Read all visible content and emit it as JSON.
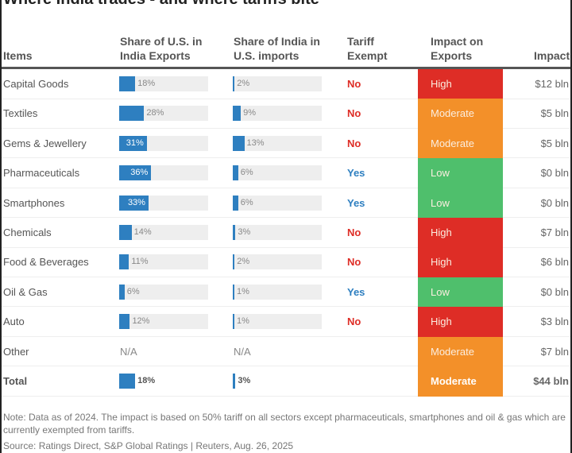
{
  "title": "Where India trades - and where tariffs bite",
  "headers": {
    "items": "Items",
    "share_us_1": "Share of U.S. in",
    "share_us_2": "India Exports",
    "share_india_1": "Share of India in",
    "share_india_2": "U.S. imports",
    "exempt_1": "Tariff",
    "exempt_2": "Exempt",
    "impact_1": "Impact on",
    "impact_2": "Exports",
    "impact_usd": "Impact"
  },
  "colors": {
    "bar": "#2e7fc0",
    "track": "#eeeeee",
    "High": "#de2d26",
    "Moderate": "#f39029",
    "Low": "#4fbf6c",
    "No": "#de2d26",
    "Yes": "#2e7fc0"
  },
  "chart_data": {
    "type": "table",
    "rows": [
      {
        "item": "Capital Goods",
        "us_share": 18,
        "us_share_label": "18%",
        "india_share": 2,
        "india_share_label": "2%",
        "exempt": "No",
        "impact": "High",
        "impact_usd": "$12 bln"
      },
      {
        "item": "Textiles",
        "us_share": 28,
        "us_share_label": "28%",
        "india_share": 9,
        "india_share_label": "9%",
        "exempt": "No",
        "impact": "Moderate",
        "impact_usd": "$5 bln"
      },
      {
        "item": "Gems & Jewellery",
        "us_share": 31,
        "us_share_label": "31%",
        "india_share": 13,
        "india_share_label": "13%",
        "exempt": "No",
        "impact": "Moderate",
        "impact_usd": "$5 bln"
      },
      {
        "item": "Pharmaceuticals",
        "us_share": 36,
        "us_share_label": "36%",
        "india_share": 6,
        "india_share_label": "6%",
        "exempt": "Yes",
        "impact": "Low",
        "impact_usd": "$0 bln"
      },
      {
        "item": "Smartphones",
        "us_share": 33,
        "us_share_label": "33%",
        "india_share": 6,
        "india_share_label": "6%",
        "exempt": "Yes",
        "impact": "Low",
        "impact_usd": "$0 bln"
      },
      {
        "item": "Chemicals",
        "us_share": 14,
        "us_share_label": "14%",
        "india_share": 3,
        "india_share_label": "3%",
        "exempt": "No",
        "impact": "High",
        "impact_usd": "$7 bln"
      },
      {
        "item": "Food & Beverages",
        "us_share": 11,
        "us_share_label": "11%",
        "india_share": 2,
        "india_share_label": "2%",
        "exempt": "No",
        "impact": "High",
        "impact_usd": "$6 bln"
      },
      {
        "item": "Oil & Gas",
        "us_share": 6,
        "us_share_label": "6%",
        "india_share": 1,
        "india_share_label": "1%",
        "exempt": "Yes",
        "impact": "Low",
        "impact_usd": "$0 bln"
      },
      {
        "item": "Auto",
        "us_share": 12,
        "us_share_label": "12%",
        "india_share": 1,
        "india_share_label": "1%",
        "exempt": "No",
        "impact": "High",
        "impact_usd": "$3 bln"
      },
      {
        "item": "Other",
        "us_share": null,
        "us_share_label": "N/A",
        "india_share": null,
        "india_share_label": "N/A",
        "exempt": "",
        "impact": "Moderate",
        "impact_usd": "$7 bln"
      },
      {
        "item": "Total",
        "us_share": 18,
        "us_share_label": "18%",
        "india_share": 3,
        "india_share_label": "3%",
        "exempt": "",
        "impact": "Moderate",
        "impact_usd": "$44 bln",
        "total": true
      }
    ]
  },
  "note": "Note: Data as of 2024. The impact is based on 50% tariff on all sectors except pharmaceuticals, smartphones and oil & gas which are currently exempted from tariffs.",
  "source": "Source: Ratings Direct, S&P Global Ratings | Reuters, Aug. 26, 2025"
}
